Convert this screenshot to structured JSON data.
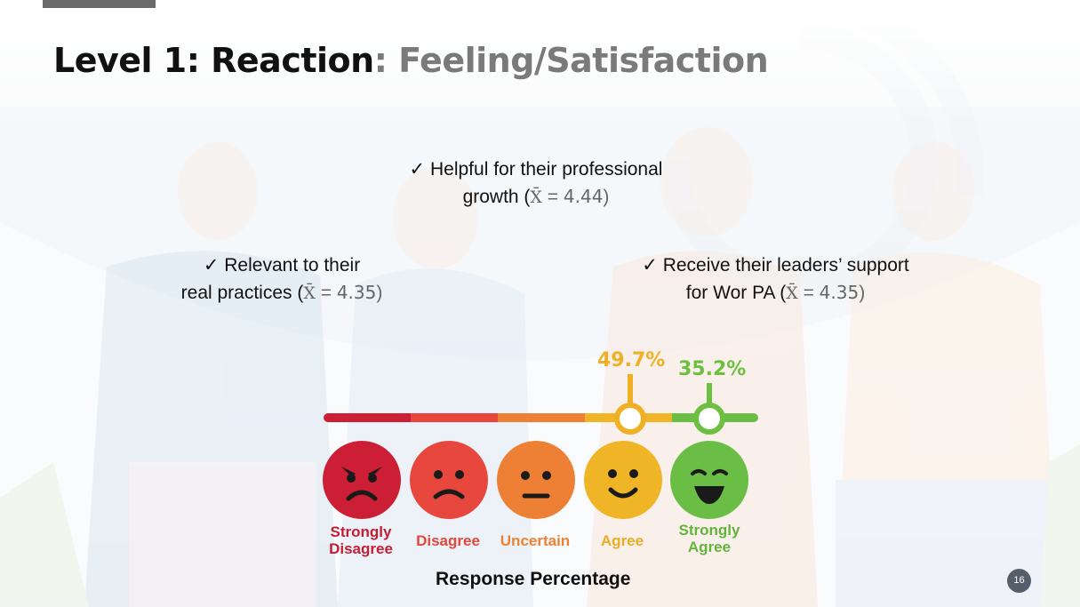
{
  "slide": {
    "title_part1": "Level 1: Reaction",
    "title_part2": ": Feeling/Satisfaction",
    "page_number": "16"
  },
  "points": [
    {
      "check": "✓",
      "line1": "Helpful for their professional",
      "line2_prefix": "growth (",
      "xbar": "X̄",
      "eq": " = ",
      "value": "4.44",
      "close": ")"
    },
    {
      "check": "✓",
      "line1": "Relevant to their",
      "line2_prefix": "real practices (",
      "xbar": "X̄",
      "eq": " = ",
      "value": "4.35",
      "close": ")"
    },
    {
      "check": "✓",
      "line1": "Receive their leaders’ support",
      "line2_prefix": "for Wor PA (",
      "xbar": "X̄",
      "eq": " = ",
      "value": "4.35",
      "close": ")"
    }
  ],
  "scale": {
    "markers": [
      {
        "label": "49.7%",
        "value": 49.7,
        "category": "Agree",
        "color": "#efb026"
      },
      {
        "label": "35.2%",
        "value": 35.2,
        "category": "Strongly Agree",
        "color": "#6cbf3f"
      }
    ],
    "faces": [
      {
        "line1": "Strongly",
        "line2": "Disagree",
        "face": "angry-face-icon",
        "color": "#cc1f36",
        "label_color": "#c41d34"
      },
      {
        "line1": "Disagree",
        "line2": "",
        "face": "sad-face-icon",
        "color": "#e8473d",
        "label_color": "#e2473d"
      },
      {
        "line1": "Uncertain",
        "line2": "",
        "face": "neutral-face-icon",
        "color": "#ee8036",
        "label_color": "#ee8036"
      },
      {
        "line1": "Agree",
        "line2": "",
        "face": "smile-face-icon",
        "color": "#f0b427",
        "label_color": "#e9ad22"
      },
      {
        "line1": "Strongly",
        "line2": "Agree",
        "face": "grin-face-icon",
        "color": "#6abd45",
        "label_color": "#62b43c"
      }
    ],
    "footer": "Response Percentage"
  }
}
